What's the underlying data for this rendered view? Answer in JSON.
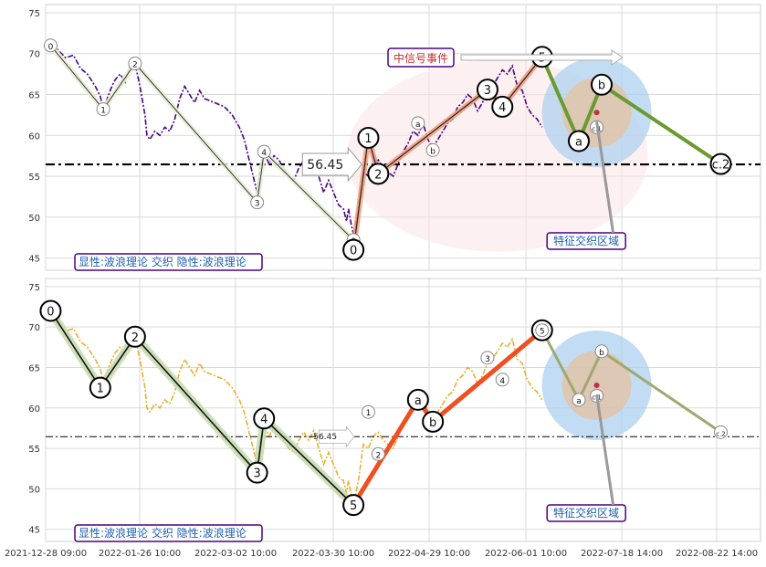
{
  "chart_data": {
    "type": "line",
    "x_tick_labels": [
      "2021-12-28 09:00",
      "2022-01-26 10:00",
      "2022-03-02 10:00",
      "2022-03-30 10:00",
      "2022-04-29 10:00",
      "2022-06-01 10:00",
      "2022-07-18 14:00",
      "2022-08-22 14:00"
    ],
    "y_ticks": [
      45,
      50,
      55,
      60,
      65,
      70,
      75
    ],
    "ylim": [
      43.5,
      76
    ],
    "xlim": [
      0,
      7.2
    ],
    "hline_value": 56.45,
    "hline_label": "56.45",
    "panels": [
      {
        "name": "top",
        "price_color": "#4b0082",
        "legend_text": "显性:波浪理论 交织 隐性:波浪理论",
        "signal_label": "中信号事件",
        "zone_label": "特征交织区域",
        "price": [
          [
            0.05,
            71.0
          ],
          [
            0.12,
            70.5
          ],
          [
            0.2,
            69.5
          ],
          [
            0.28,
            69.8
          ],
          [
            0.35,
            68.2
          ],
          [
            0.42,
            67.5
          ],
          [
            0.5,
            66.0
          ],
          [
            0.55,
            64.8
          ],
          [
            0.58,
            63.2
          ],
          [
            0.62,
            64.5
          ],
          [
            0.66,
            65.8
          ],
          [
            0.7,
            66.8
          ],
          [
            0.75,
            67.5
          ],
          [
            0.8,
            66.5
          ],
          [
            0.85,
            68.5
          ],
          [
            0.9,
            68.8
          ],
          [
            0.95,
            66.0
          ],
          [
            1.0,
            62.5
          ],
          [
            1.02,
            60.0
          ],
          [
            1.05,
            59.5
          ],
          [
            1.1,
            60.5
          ],
          [
            1.15,
            60.0
          ],
          [
            1.2,
            61.0
          ],
          [
            1.25,
            60.5
          ],
          [
            1.3,
            62.0
          ],
          [
            1.35,
            64.5
          ],
          [
            1.4,
            66.0
          ],
          [
            1.45,
            65.0
          ],
          [
            1.5,
            64.0
          ],
          [
            1.55,
            65.5
          ],
          [
            1.6,
            64.5
          ],
          [
            1.7,
            64.0
          ],
          [
            1.8,
            63.5
          ],
          [
            1.88,
            62.5
          ],
          [
            1.95,
            61.0
          ],
          [
            2.0,
            59.5
          ],
          [
            2.05,
            57.0
          ],
          [
            2.1,
            54.5
          ],
          [
            2.13,
            53.0
          ],
          [
            2.16,
            56.0
          ],
          [
            2.2,
            58.0
          ],
          [
            2.25,
            56.5
          ],
          [
            2.3,
            57.5
          ],
          [
            2.35,
            57.0
          ],
          [
            2.4,
            55.8
          ],
          [
            2.45,
            55.0
          ],
          [
            2.5,
            54.5
          ],
          [
            2.55,
            56.0
          ],
          [
            2.6,
            57.0
          ],
          [
            2.65,
            56.0
          ],
          [
            2.7,
            57.2
          ],
          [
            2.75,
            55.0
          ],
          [
            2.8,
            53.0
          ],
          [
            2.85,
            54.5
          ],
          [
            2.9,
            53.0
          ],
          [
            2.95,
            51.5
          ],
          [
            3.0,
            51.0
          ],
          [
            3.03,
            49.5
          ],
          [
            3.05,
            51.0
          ],
          [
            3.08,
            49.0
          ],
          [
            3.1,
            48.0
          ],
          [
            3.15,
            51.0
          ],
          [
            3.2,
            55.5
          ],
          [
            3.25,
            55.0
          ],
          [
            3.3,
            56.5
          ],
          [
            3.35,
            57.0
          ],
          [
            3.4,
            56.0
          ],
          [
            3.45,
            55.5
          ],
          [
            3.5,
            55.0
          ],
          [
            3.55,
            56.5
          ],
          [
            3.6,
            58.0
          ],
          [
            3.65,
            59.0
          ],
          [
            3.7,
            60.5
          ],
          [
            3.75,
            60.0
          ],
          [
            3.8,
            61.5
          ],
          [
            3.85,
            59.5
          ],
          [
            3.9,
            58.5
          ],
          [
            3.95,
            59.5
          ],
          [
            4.0,
            60.5
          ],
          [
            4.05,
            61.5
          ],
          [
            4.1,
            62.0
          ],
          [
            4.15,
            63.5
          ],
          [
            4.2,
            64.0
          ],
          [
            4.25,
            65.0
          ],
          [
            4.3,
            64.5
          ],
          [
            4.35,
            63.0
          ],
          [
            4.4,
            64.0
          ],
          [
            4.45,
            65.5
          ],
          [
            4.5,
            66.0
          ],
          [
            4.55,
            67.0
          ],
          [
            4.6,
            68.0
          ],
          [
            4.65,
            67.5
          ],
          [
            4.7,
            68.5
          ],
          [
            4.75,
            66.0
          ],
          [
            4.8,
            65.5
          ],
          [
            4.85,
            63.5
          ],
          [
            4.9,
            62.5
          ],
          [
            4.95,
            62.0
          ],
          [
            5.0,
            61.0
          ]
        ],
        "waves": [
          {
            "label": "0",
            "x": 0.05,
            "y": 71.0,
            "anchor": "above",
            "big": false
          },
          {
            "label": "1",
            "x": 0.58,
            "y": 63.2,
            "anchor": "below",
            "big": false
          },
          {
            "label": "2",
            "x": 0.9,
            "y": 68.8,
            "anchor": "above",
            "big": false
          },
          {
            "label": "3",
            "x": 2.13,
            "y": 51.8,
            "anchor": "below",
            "big": false
          },
          {
            "label": "4",
            "x": 2.2,
            "y": 58.0,
            "anchor": "above",
            "big": false
          },
          {
            "label": "0",
            "x": 3.1,
            "y": 47.2,
            "anchor": "below",
            "big": false
          },
          {
            "label": "a",
            "x": 3.75,
            "y": 61.5,
            "anchor": "above",
            "big": false
          },
          {
            "label": "b",
            "x": 3.9,
            "y": 58.2,
            "anchor": "below",
            "big": false
          },
          {
            "label": "0",
            "x": 3.1,
            "y": 46.0,
            "anchor": "below",
            "big": true
          },
          {
            "label": "1",
            "x": 3.25,
            "y": 59.7,
            "anchor": "above",
            "big": true
          },
          {
            "label": "2",
            "x": 3.35,
            "y": 55.3,
            "anchor": "below",
            "big": true
          },
          {
            "label": "3",
            "x": 4.45,
            "y": 65.6,
            "anchor": "above",
            "big": true
          },
          {
            "label": "4",
            "x": 4.6,
            "y": 63.5,
            "anchor": "below",
            "big": true
          },
          {
            "label": "5",
            "x": 5.0,
            "y": 69.6,
            "anchor": "above",
            "big": true
          },
          {
            "label": "a",
            "x": 5.37,
            "y": 59.3,
            "anchor": "below",
            "big": true
          },
          {
            "label": "b",
            "x": 5.6,
            "y": 66.2,
            "anchor": "above",
            "big": true
          },
          {
            "label": "c.1",
            "x": 5.55,
            "y": 61.0,
            "anchor": "below",
            "big": false
          },
          {
            "label": "c.2",
            "x": 6.8,
            "y": 56.5,
            "anchor": "below",
            "big": true
          }
        ]
      },
      {
        "name": "bottom",
        "price_color": "#e8b030",
        "legend_text": "显性:波浪理论 交织 隐性:波浪理论",
        "zone_label": "特征交织区域",
        "waves": [
          {
            "label": "0",
            "x": 0.05,
            "y": 72.0,
            "big": true
          },
          {
            "label": "1",
            "x": 0.55,
            "y": 62.5,
            "big": true
          },
          {
            "label": "2",
            "x": 0.9,
            "y": 68.8,
            "big": true
          },
          {
            "label": "3",
            "x": 2.13,
            "y": 52.0,
            "big": true
          },
          {
            "label": "4",
            "x": 2.2,
            "y": 58.7,
            "big": true
          },
          {
            "label": "5",
            "x": 3.1,
            "y": 48.0,
            "big": true
          },
          {
            "label": "a",
            "x": 3.75,
            "y": 61.0,
            "big": true
          },
          {
            "label": "b",
            "x": 3.9,
            "y": 58.3,
            "big": true
          },
          {
            "label": "c",
            "x": 5.0,
            "y": 69.6,
            "big": true
          },
          {
            "label": "1",
            "x": 3.25,
            "y": 59.5,
            "big": false
          },
          {
            "label": "2",
            "x": 3.35,
            "y": 54.3,
            "big": false
          },
          {
            "label": "3",
            "x": 4.45,
            "y": 66.2,
            "big": false
          },
          {
            "label": "4",
            "x": 4.6,
            "y": 63.5,
            "big": false
          },
          {
            "label": "5",
            "x": 5.0,
            "y": 69.6,
            "big": false
          },
          {
            "label": "a",
            "x": 5.37,
            "y": 61.0,
            "big": false
          },
          {
            "label": "b",
            "x": 5.6,
            "y": 67.0,
            "big": false
          },
          {
            "label": "c.1",
            "x": 5.55,
            "y": 61.5,
            "big": false
          },
          {
            "label": "c.2",
            "x": 6.8,
            "y": 57.0,
            "big": false
          }
        ]
      }
    ]
  }
}
